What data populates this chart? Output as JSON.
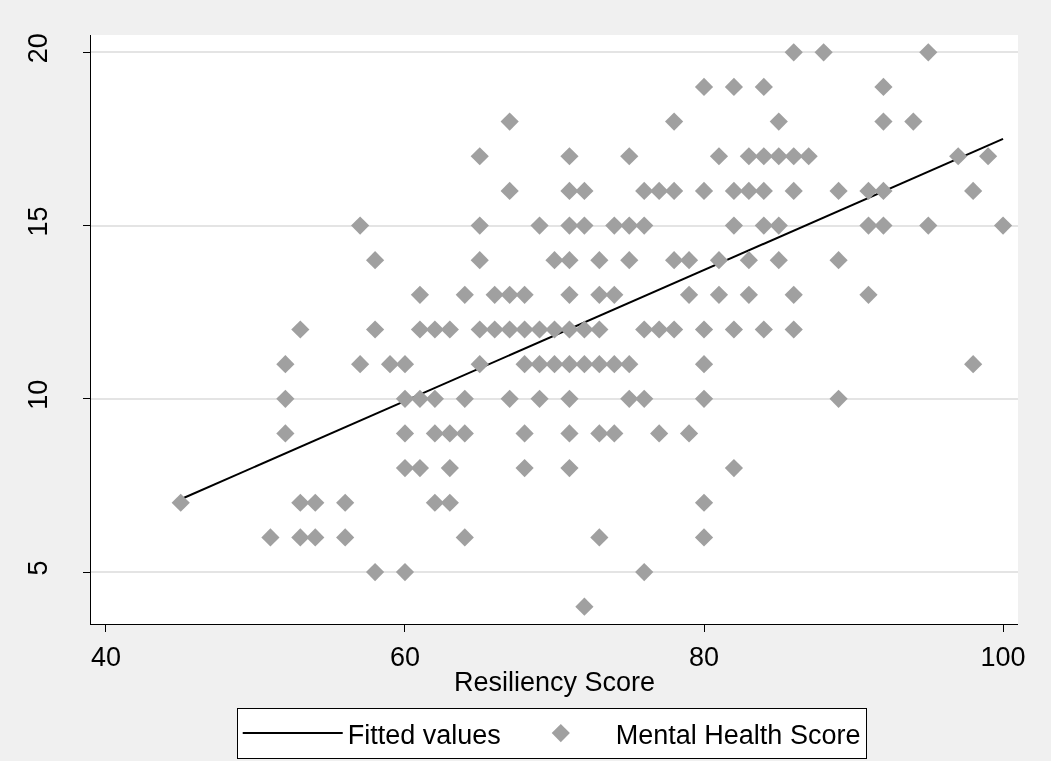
{
  "chart_data": {
    "type": "scatter",
    "xlabel": "Resiliency Score",
    "xlim": [
      39,
      101
    ],
    "xticks": [
      40,
      60,
      80,
      100
    ],
    "ylim": [
      3.5,
      20.5
    ],
    "yticks": [
      5,
      10,
      15,
      20
    ],
    "grid": "y",
    "legend": "bottom",
    "marker": "diamond",
    "series": [
      {
        "name": "Fitted values",
        "type": "line",
        "marker": "none",
        "color": "#000000",
        "x": [
          45,
          100
        ],
        "values": [
          7.1,
          17.5
        ]
      },
      {
        "name": "Mental Health Score",
        "color": "#a0a0a0",
        "x": [
          45,
          51,
          52,
          52,
          52,
          53,
          53,
          53,
          54,
          54,
          56,
          56,
          57,
          57,
          58,
          58,
          58,
          59,
          60,
          60,
          60,
          60,
          60,
          61,
          61,
          61,
          61,
          62,
          62,
          62,
          62,
          63,
          63,
          63,
          63,
          64,
          64,
          64,
          64,
          65,
          65,
          65,
          65,
          65,
          66,
          66,
          67,
          67,
          67,
          67,
          67,
          68,
          68,
          68,
          68,
          68,
          69,
          69,
          69,
          69,
          70,
          70,
          70,
          71,
          71,
          71,
          71,
          71,
          71,
          71,
          71,
          71,
          71,
          72,
          72,
          72,
          72,
          72,
          73,
          73,
          73,
          73,
          73,
          73,
          74,
          74,
          74,
          74,
          75,
          75,
          75,
          75,
          75,
          76,
          76,
          76,
          76,
          76,
          77,
          77,
          77,
          78,
          78,
          78,
          78,
          79,
          79,
          79,
          80,
          80,
          80,
          80,
          80,
          80,
          80,
          81,
          81,
          81,
          82,
          82,
          82,
          82,
          82,
          83,
          83,
          83,
          83,
          84,
          84,
          84,
          84,
          84,
          85,
          85,
          85,
          85,
          86,
          86,
          86,
          86,
          86,
          87,
          88,
          89,
          89,
          89,
          91,
          91,
          91,
          92,
          92,
          92,
          92,
          94,
          95,
          95,
          97,
          98,
          98,
          99,
          100
        ],
        "values": [
          7,
          6,
          11,
          10,
          9,
          12,
          7,
          6,
          7,
          6,
          7,
          6,
          15,
          11,
          14,
          12,
          5,
          11,
          11,
          10,
          9,
          8,
          5,
          13,
          12,
          10,
          8,
          12,
          10,
          9,
          7,
          12,
          9,
          8,
          7,
          13,
          10,
          9,
          6,
          17,
          15,
          14,
          12,
          11,
          13,
          12,
          18,
          16,
          13,
          12,
          10,
          13,
          12,
          11,
          9,
          8,
          15,
          12,
          11,
          10,
          14,
          12,
          11,
          17,
          16,
          15,
          14,
          13,
          12,
          11,
          10,
          9,
          8,
          16,
          15,
          12,
          11,
          4,
          14,
          13,
          12,
          11,
          9,
          6,
          15,
          13,
          11,
          9,
          17,
          15,
          14,
          11,
          10,
          16,
          15,
          12,
          10,
          5,
          16,
          12,
          9,
          18,
          16,
          14,
          12,
          14,
          13,
          9,
          19,
          16,
          12,
          11,
          10,
          7,
          6,
          17,
          14,
          13,
          19,
          16,
          15,
          12,
          8,
          17,
          16,
          14,
          13,
          19,
          17,
          16,
          15,
          12,
          18,
          17,
          15,
          14,
          20,
          17,
          16,
          13,
          12,
          17,
          20,
          16,
          14,
          10,
          16,
          15,
          13,
          19,
          18,
          16,
          15,
          18,
          20,
          15,
          17,
          16,
          11,
          17,
          15
        ]
      }
    ]
  }
}
